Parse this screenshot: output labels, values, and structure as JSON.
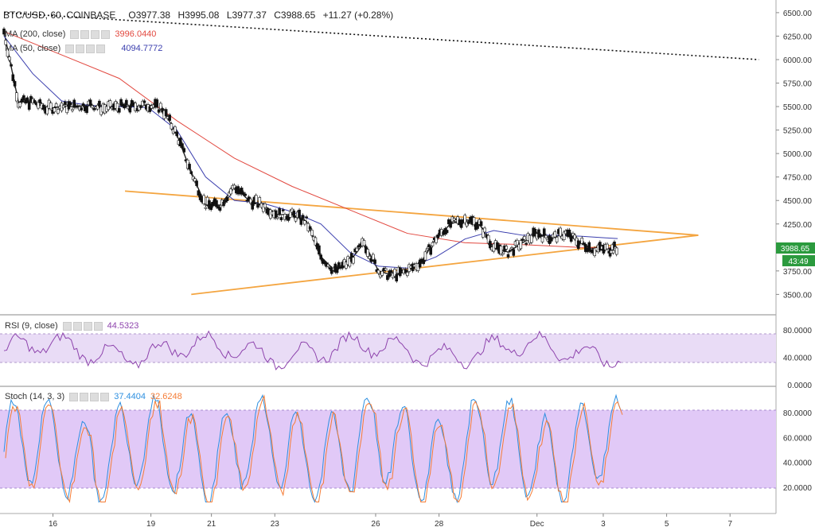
{
  "header": {
    "symbol": "BTC/USD, 60, COINBASE",
    "open": "O3977.38",
    "high": "H3995.08",
    "low": "L3977.37",
    "close": "C3988.65",
    "change": "+11.27 (+0.28%)"
  },
  "studies": {
    "ma200": {
      "name": "MA (200, close)",
      "value": "3996.0440",
      "color": "#e2483f"
    },
    "ma50": {
      "name": "MA (50, close)",
      "value": "4094.7772",
      "color": "#3b3fae"
    },
    "rsi": {
      "name": "RSI (9, close)",
      "value": "44.5323",
      "color": "#8e44ad"
    },
    "stoch": {
      "name": "Stoch (14, 3, 3)",
      "k": "37.4404",
      "d": "32.6248",
      "k_color": "#2d8fe0",
      "d_color": "#f57c35"
    }
  },
  "price_label": "3988.65",
  "timer_label": "43:49",
  "chart_data": [
    {
      "type": "line",
      "name": "price",
      "x_ticks": [
        "16",
        "19",
        "21",
        "23",
        "26",
        "28",
        "Dec",
        "3",
        "5",
        "7"
      ],
      "y_ticks": [
        "6500.00",
        "6250.00",
        "6000.00",
        "5750.00",
        "5500.00",
        "5250.00",
        "5000.00",
        "4750.00",
        "4500.00",
        "4250.00",
        "3750.00",
        "3500.00"
      ],
      "ylim": [
        3300,
        6550
      ],
      "series": [
        {
          "name": "price",
          "color": "#222",
          "x": [
            0,
            0.5,
            1,
            1.5,
            2,
            2.5,
            3,
            3.5,
            4,
            4.5,
            5,
            5.5,
            6,
            6.5,
            7,
            7.5,
            8,
            8.5,
            9,
            9.5,
            10,
            10.5,
            11,
            11.5,
            12,
            12.5,
            13,
            13.5,
            14,
            14.5,
            15,
            15.5,
            16,
            16.5,
            17,
            17.5,
            18,
            18.5,
            19,
            19.5,
            20,
            20.5,
            21,
            21.3
          ],
          "values": [
            6300,
            5550,
            5550,
            5480,
            5500,
            5500,
            5520,
            5480,
            5500,
            5500,
            5520,
            5480,
            5200,
            4800,
            4450,
            4450,
            4650,
            4500,
            4450,
            4350,
            4350,
            4280,
            3900,
            3750,
            3850,
            4050,
            3750,
            3700,
            3750,
            3850,
            4100,
            4250,
            4300,
            4250,
            4000,
            3950,
            4050,
            4150,
            4100,
            4150,
            4050,
            3980,
            3988,
            3988
          ]
        },
        {
          "name": "MA (200, close)",
          "color": "#e2483f",
          "x": [
            0,
            2,
            4,
            6,
            8,
            10,
            12,
            14,
            16,
            18,
            20,
            21.3
          ],
          "values": [
            6300,
            6050,
            5800,
            5350,
            4950,
            4650,
            4400,
            4150,
            4050,
            4030,
            4000,
            3996
          ]
        },
        {
          "name": "MA (50, close)",
          "color": "#3b3fae",
          "x": [
            0,
            1,
            2,
            3,
            4,
            5,
            6,
            7,
            8,
            9,
            10,
            11,
            12,
            13,
            14,
            15,
            16,
            17,
            18,
            19,
            20,
            21,
            21.3
          ],
          "values": [
            6250,
            5850,
            5560,
            5510,
            5500,
            5490,
            5250,
            4750,
            4500,
            4470,
            4380,
            4250,
            3950,
            3800,
            3780,
            3900,
            4090,
            4180,
            4130,
            4130,
            4120,
            4100,
            4095
          ]
        }
      ],
      "trendlines": [
        {
          "x": [
            4.2,
            24.1
          ],
          "y": [
            4600,
            4130
          ],
          "color": "#f4a540"
        },
        {
          "x": [
            6.5,
            24.1
          ],
          "y": [
            3500,
            4130
          ],
          "color": "#f4a540"
        },
        {
          "x": [
            0,
            26.2
          ],
          "y": [
            6500,
            6000
          ],
          "color": "#111",
          "dotted": true
        }
      ]
    },
    {
      "type": "line",
      "name": "RSI",
      "y_ticks": [
        "80.0000",
        "40.0000",
        "0.0000"
      ],
      "ylim": [
        0,
        100
      ],
      "band": [
        30,
        70
      ]
    },
    {
      "type": "line",
      "name": "Stoch",
      "y_ticks": [
        "80.0000",
        "60.0000",
        "40.0000",
        "20.0000"
      ],
      "ylim": [
        0,
        100
      ],
      "band": [
        20,
        80
      ]
    }
  ]
}
